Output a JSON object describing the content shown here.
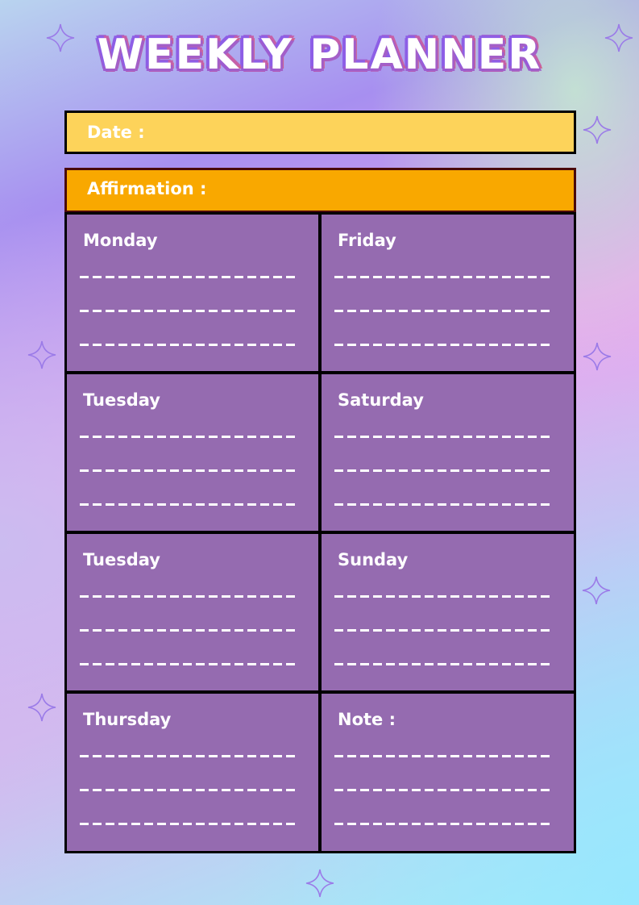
{
  "title": "WEEKLY PLANNER",
  "date_label": "Date :",
  "affirmation_label": "Affirmation :",
  "cells": [
    {
      "label": "Monday"
    },
    {
      "label": "Friday"
    },
    {
      "label": "Tuesday"
    },
    {
      "label": "Saturday"
    },
    {
      "label": "Tuesday"
    },
    {
      "label": "Sunday"
    },
    {
      "label": "Thursday"
    },
    {
      "label": "Note :"
    }
  ],
  "colors": {
    "date_bar": "#fdd35a",
    "affirmation_bar": "#f9a800",
    "cell": "#956bb0"
  }
}
